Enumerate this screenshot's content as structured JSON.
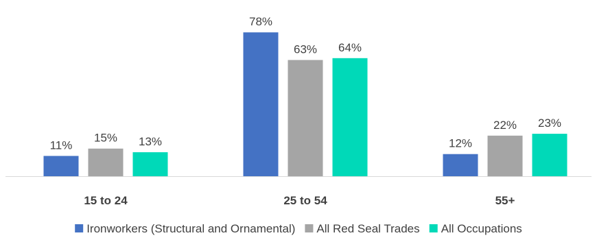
{
  "chart_data": {
    "type": "bar",
    "categories": [
      "15 to 24",
      "25 to 54",
      "55+"
    ],
    "series": [
      {
        "name": "Ironworkers (Structural and Ornamental)",
        "values": [
          11,
          78,
          12
        ],
        "labels": [
          "11%",
          "78%",
          "12%"
        ],
        "color": "#4472C4"
      },
      {
        "name": "All Red Seal Trades",
        "values": [
          15,
          63,
          22
        ],
        "labels": [
          "15%",
          "63%",
          "22%"
        ],
        "color": "#A5A5A5"
      },
      {
        "name": "All Occupations",
        "values": [
          13,
          64,
          23
        ],
        "labels": [
          "13%",
          "64%",
          "23%"
        ],
        "color": "#00D9B8"
      }
    ],
    "ylim": [
      0,
      85
    ],
    "grid": false,
    "legend_position": "bottom"
  }
}
